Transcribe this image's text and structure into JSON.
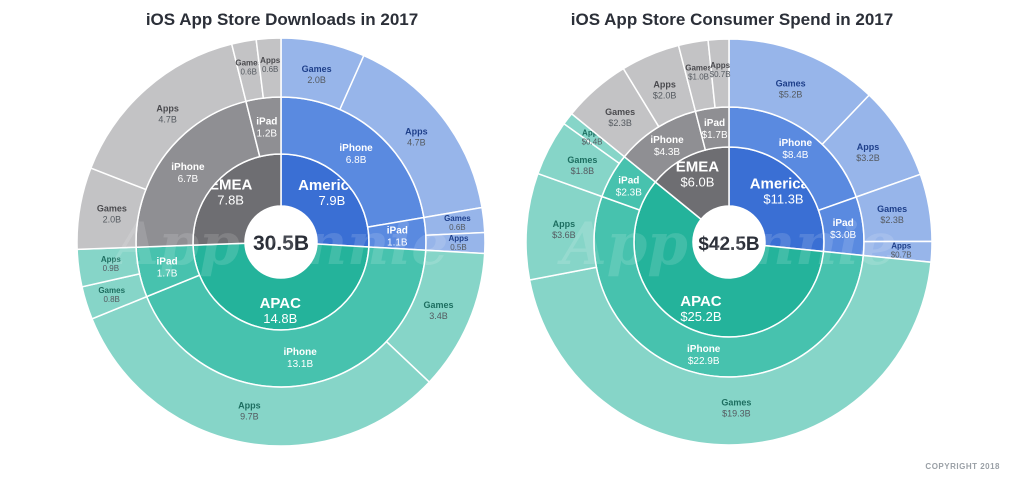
{
  "copyright": "COPYRIGHT 2018",
  "watermark": "App Annie",
  "colors": {
    "americas": [
      "#3a6fd4",
      "#5a8ae0",
      "#97b5ea"
    ],
    "emea": [
      "#6e6e72",
      "#8f8f93",
      "#c3c3c5"
    ],
    "apac": [
      "#24b39b",
      "#47c2ae",
      "#86d5c8"
    ],
    "center_fill": "#ffffff",
    "label_dark_apac": "#1d6e60",
    "label_dark_americas": "#1e3f8a",
    "label_dark_emea": "#4a4a4e"
  },
  "chart_data": [
    {
      "type": "sunburst",
      "title": "iOS App Store Downloads in 2017",
      "total_label": "30.5B",
      "regions": [
        {
          "name": "Americas",
          "label": "7.9B",
          "value": 7.9,
          "key": "americas",
          "devices": [
            {
              "name": "iPhone",
              "label": "6.8B",
              "value": 6.8,
              "categories": [
                {
                  "name": "Games",
                  "label": "2.0B",
                  "value": 2.0
                },
                {
                  "name": "Apps",
                  "label": "4.7B",
                  "value": 4.7
                }
              ]
            },
            {
              "name": "iPad",
              "label": "1.1B",
              "value": 1.1,
              "categories": [
                {
                  "name": "Games",
                  "label": "0.6B",
                  "value": 0.6
                },
                {
                  "name": "Apps",
                  "label": "0.5B",
                  "value": 0.5
                }
              ]
            }
          ]
        },
        {
          "name": "APAC",
          "label": "14.8B",
          "value": 14.8,
          "key": "apac",
          "devices": [
            {
              "name": "iPhone",
              "label": "13.1B",
              "value": 13.1,
              "categories": [
                {
                  "name": "Games",
                  "label": "3.4B",
                  "value": 3.4
                },
                {
                  "name": "Apps",
                  "label": "9.7B",
                  "value": 9.7
                }
              ]
            },
            {
              "name": "iPad",
              "label": "1.7B",
              "value": 1.7,
              "categories": [
                {
                  "name": "Games",
                  "label": "0.8B",
                  "value": 0.8
                },
                {
                  "name": "Apps",
                  "label": "0.9B",
                  "value": 0.9
                }
              ]
            }
          ]
        },
        {
          "name": "EMEA",
          "label": "7.8B",
          "value": 7.8,
          "key": "emea",
          "devices": [
            {
              "name": "iPhone",
              "label": "6.7B",
              "value": 6.7,
              "categories": [
                {
                  "name": "Games",
                  "label": "2.0B",
                  "value": 2.0
                },
                {
                  "name": "Apps",
                  "label": "4.7B",
                  "value": 4.7
                }
              ]
            },
            {
              "name": "iPad",
              "label": "1.2B",
              "value": 1.2,
              "categories": [
                {
                  "name": "Games",
                  "label": "0.6B",
                  "value": 0.6
                },
                {
                  "name": "Apps",
                  "label": "0.6B",
                  "value": 0.6
                }
              ]
            }
          ]
        }
      ]
    },
    {
      "type": "sunburst",
      "title": "iOS App Store Consumer Spend in 2017",
      "total_label": "$42.5B",
      "regions": [
        {
          "name": "Americas",
          "label": "$11.3B",
          "value": 11.3,
          "key": "americas",
          "devices": [
            {
              "name": "iPhone",
              "label": "$8.4B",
              "value": 8.4,
              "categories": [
                {
                  "name": "Games",
                  "label": "$5.2B",
                  "value": 5.2
                },
                {
                  "name": "Apps",
                  "label": "$3.2B",
                  "value": 3.2
                }
              ]
            },
            {
              "name": "iPad",
              "label": "$3.0B",
              "value": 3.0,
              "categories": [
                {
                  "name": "Games",
                  "label": "$2.3B",
                  "value": 2.3
                },
                {
                  "name": "Apps",
                  "label": "$0.7B",
                  "value": 0.7
                }
              ]
            }
          ]
        },
        {
          "name": "APAC",
          "label": "$25.2B",
          "value": 25.2,
          "key": "apac",
          "devices": [
            {
              "name": "iPhone",
              "label": "$22.9B",
              "value": 22.9,
              "categories": [
                {
                  "name": "Games",
                  "label": "$19.3B",
                  "value": 19.3
                },
                {
                  "name": "Apps",
                  "label": "$3.6B",
                  "value": 3.6
                }
              ]
            },
            {
              "name": "iPad",
              "label": "$2.3B",
              "value": 2.3,
              "categories": [
                {
                  "name": "Games",
                  "label": "$1.8B",
                  "value": 1.8
                },
                {
                  "name": "Apps",
                  "label": "$0.4B",
                  "value": 0.4
                }
              ]
            }
          ]
        },
        {
          "name": "EMEA",
          "label": "$6.0B",
          "value": 6.0,
          "key": "emea",
          "devices": [
            {
              "name": "iPhone",
              "label": "$4.3B",
              "value": 4.3,
              "categories": [
                {
                  "name": "Games",
                  "label": "$2.3B",
                  "value": 2.3
                },
                {
                  "name": "Apps",
                  "label": "$2.0B",
                  "value": 2.0
                }
              ]
            },
            {
              "name": "iPad",
              "label": "$1.7B",
              "value": 1.7,
              "categories": [
                {
                  "name": "Games",
                  "label": "$1.0B",
                  "value": 1.0
                },
                {
                  "name": "Apps",
                  "label": "$0.7B",
                  "value": 0.7
                }
              ]
            }
          ]
        }
      ]
    }
  ]
}
